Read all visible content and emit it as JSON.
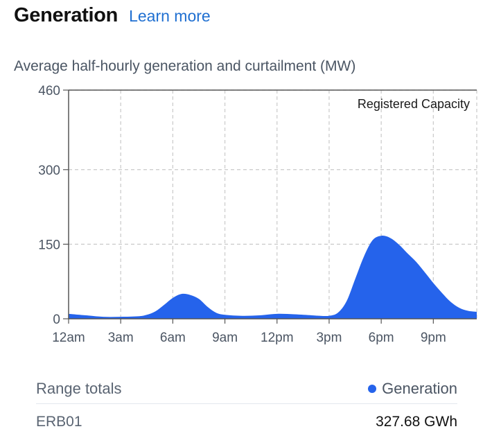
{
  "header": {
    "title": "Generation",
    "learn_more": "Learn more"
  },
  "chart_data": {
    "type": "area",
    "title": "Average half-hourly generation and curtailment (MW)",
    "ylim": [
      0,
      460
    ],
    "y_ticks": [
      0,
      150,
      300,
      460
    ],
    "x_tick_labels": [
      "12am",
      "3am",
      "6am",
      "9am",
      "12pm",
      "3pm",
      "6pm",
      "9pm"
    ],
    "x_range_hours": [
      0,
      23.5
    ],
    "grid": true,
    "annotation": "Registered Capacity",
    "series": [
      {
        "name": "Generation",
        "color": "#2563eb",
        "x_hours": [
          0,
          1,
          2,
          3,
          4,
          4.5,
          5,
          5.5,
          6,
          6.5,
          7,
          7.5,
          8,
          8.5,
          9,
          10,
          11,
          12,
          13,
          14,
          14.5,
          15,
          15.5,
          16,
          16.5,
          17,
          17.5,
          18,
          18.5,
          19,
          19.5,
          20,
          20.5,
          21,
          21.5,
          22,
          22.5,
          23,
          23.5
        ],
        "values": [
          10,
          7,
          4,
          4,
          5,
          8,
          15,
          28,
          42,
          50,
          48,
          40,
          24,
          12,
          8,
          6,
          7,
          10,
          9,
          7,
          6,
          6,
          12,
          35,
          80,
          125,
          158,
          167,
          163,
          150,
          132,
          115,
          94,
          72,
          52,
          34,
          22,
          16,
          14
        ]
      }
    ]
  },
  "totals": {
    "heading": "Range totals",
    "legend_label": "Generation",
    "rows": [
      {
        "name": "ERB01",
        "value": "327.68 GWh"
      }
    ]
  }
}
